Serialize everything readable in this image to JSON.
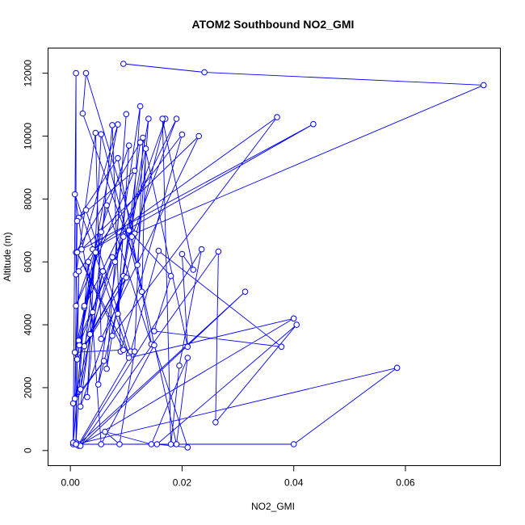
{
  "chart_data": {
    "type": "line",
    "title": "ATOM2 Southbound NO2_GMI",
    "xlabel": "NO2_GMI",
    "ylabel": "Altitude (m)",
    "xlim": [
      -0.004,
      0.077
    ],
    "ylim": [
      -480,
      12800
    ],
    "xticks": [
      0.0,
      0.02,
      0.04,
      0.06
    ],
    "xtick_labels": [
      "0.00",
      "0.02",
      "0.04",
      "0.06"
    ],
    "yticks": [
      0,
      2000,
      4000,
      6000,
      8000,
      10000,
      12000
    ],
    "ytick_labels": [
      "0",
      "2000",
      "4000",
      "6000",
      "8000",
      "10000",
      "12000"
    ],
    "grid": false,
    "legend": "none",
    "marker": "open-circle",
    "colors": {
      "series": "#0000ff"
    },
    "series": [
      {
        "values": [
          [
            0.0095,
            12300
          ],
          [
            0.024,
            12030
          ],
          [
            0.074,
            11620
          ],
          [
            0.0115,
            6900
          ],
          [
            0.0028,
            12000
          ],
          [
            0.0022,
            10720
          ],
          [
            0.012,
            5900
          ],
          [
            0.014,
            10550
          ],
          [
            0.0065,
            2600
          ],
          [
            0.01,
            10700
          ],
          [
            0.008,
            6000
          ],
          [
            0.017,
            10550
          ],
          [
            0.005,
            2100
          ],
          [
            0.0125,
            10950
          ],
          [
            0.011,
            6800
          ],
          [
            0.019,
            10550
          ],
          [
            0.0025,
            4550
          ],
          [
            0.0085,
            10370
          ],
          [
            0.002,
            6400
          ],
          [
            0.023,
            10000
          ],
          [
            0.0055,
            3550
          ],
          [
            0.0045,
            10100
          ],
          [
            0.001,
            5600
          ],
          [
            0.02,
            10050
          ],
          [
            0.009,
            3150
          ],
          [
            0.0075,
            10350
          ],
          [
            0.003,
            1700
          ],
          [
            0.0055,
            10060
          ],
          [
            0.0128,
            5050
          ],
          [
            0.0135,
            9600
          ],
          [
            0.0075,
            3650
          ],
          [
            0.037,
            10600
          ],
          [
            0.004,
            6400
          ],
          [
            0.0435,
            10380
          ],
          [
            0.001,
            6300
          ],
          [
            0.0125,
            9800
          ],
          [
            0.0085,
            4350
          ],
          [
            0.0105,
            9700
          ],
          [
            0.001,
            4600
          ],
          [
            0.0115,
            8900
          ],
          [
            0.0015,
            7400
          ],
          [
            0.0085,
            9300
          ],
          [
            0.0145,
            3380
          ],
          [
            0.0065,
            7800
          ],
          [
            0.0015,
            3500
          ],
          [
            0.0095,
            6800
          ],
          [
            0.0035,
            3700
          ],
          [
            0.0095,
            5550
          ],
          [
            0.0025,
            3320
          ],
          [
            0.0058,
            5700
          ],
          [
            0.0018,
            1950
          ],
          [
            0.0045,
            6300
          ],
          [
            0.0012,
            2900
          ],
          [
            0.01,
            5500
          ],
          [
            0.0018,
            1400
          ],
          [
            0.004,
            4400
          ],
          [
            0.0008,
            8150
          ],
          [
            0.0105,
            3050
          ],
          [
            0.0012,
            6300
          ],
          [
            0.0095,
            3200
          ],
          [
            0.0008,
            3120
          ],
          [
            0.0055,
            6950
          ],
          [
            0.0016,
            3350
          ],
          [
            0.0075,
            6150
          ],
          [
            0.0005,
            1500
          ],
          [
            0.006,
            2850
          ],
          [
            0.0008,
            1650
          ],
          [
            0.0012,
            7300
          ],
          [
            0.0028,
            7650
          ],
          [
            0.0108,
            3150
          ],
          [
            0.0158,
            6350
          ],
          [
            0.0378,
            3300
          ],
          [
            0.015,
            3800
          ],
          [
            0.018,
            5550
          ],
          [
            0.0105,
            7000
          ],
          [
            0.019,
            200
          ],
          [
            0.021,
            2950
          ],
          [
            0.0145,
            200
          ],
          [
            0.0062,
            600
          ],
          [
            0.0088,
            200
          ],
          [
            0.0115,
            3150
          ],
          [
            0.013,
            9950
          ],
          [
            0.021,
            3300
          ],
          [
            0.02,
            6250
          ],
          [
            0.022,
            5750
          ],
          [
            0.0165,
            10550
          ],
          [
            0.018,
            200
          ],
          [
            0.0195,
            2700
          ],
          [
            0.0235,
            6400
          ],
          [
            0.0015,
            150
          ],
          [
            0.04,
            4200
          ],
          [
            0.0105,
            2950
          ],
          [
            0.0015,
            200
          ],
          [
            0.0313,
            5050
          ],
          [
            0.0018,
            150
          ],
          [
            0.0265,
            6330
          ],
          [
            0.026,
            900
          ],
          [
            0.0405,
            4000
          ],
          [
            0.0155,
            200
          ],
          [
            0.021,
            100
          ],
          [
            0.015,
            3350
          ],
          [
            0.0055,
            200
          ],
          [
            0.0032,
            6000
          ],
          [
            0.0005,
            200
          ],
          [
            0.0025,
            4600
          ],
          [
            0.001,
            250
          ],
          [
            0.0015,
            5700
          ],
          [
            0.0005,
            250
          ],
          [
            0.001,
            12000
          ],
          [
            0.001,
            200
          ],
          [
            0.0585,
            2630
          ],
          [
            0.04,
            200
          ],
          [
            0.001,
            200
          ]
        ]
      }
    ]
  }
}
